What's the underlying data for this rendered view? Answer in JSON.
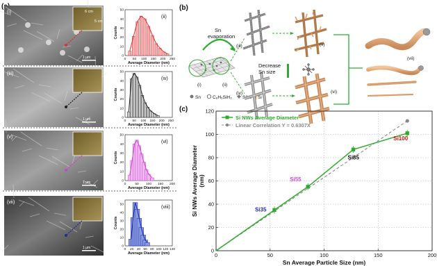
{
  "panels": {
    "a": {
      "label": "(a)",
      "rows": [
        {
          "sem_label": "(i)",
          "scale": "1 µm",
          "inset_w": "6 cm",
          "inset_h": "5 cm",
          "hist_label": "(ii)",
          "color": "#e03030",
          "fill": "#f3b0b0",
          "xticks": [
            "0",
            "50",
            "100",
            "150",
            "200",
            "250"
          ],
          "yticks": [
            "0",
            "10",
            "20",
            "30",
            "40",
            "50"
          ],
          "xlabel": "Average Diameter (nm)",
          "ylabel": "Counts",
          "xmax": 250,
          "ymax": 50,
          "bins": [
            {
              "x": 25,
              "y": 5
            },
            {
              "x": 45,
              "y": 21
            },
            {
              "x": 65,
              "y": 37
            },
            {
              "x": 85,
              "y": 43
            },
            {
              "x": 105,
              "y": 40
            },
            {
              "x": 125,
              "y": 32
            },
            {
              "x": 145,
              "y": 22
            },
            {
              "x": 165,
              "y": 13
            },
            {
              "x": 185,
              "y": 8
            },
            {
              "x": 205,
              "y": 4
            },
            {
              "x": 225,
              "y": 2
            }
          ]
        },
        {
          "sem_label": "(iii)",
          "scale": "1 µm",
          "inset_w": "",
          "inset_h": "",
          "hist_label": "(iv)",
          "color": "#222222",
          "fill": "#c8c8c8",
          "xticks": [
            "0",
            "50",
            "100",
            "150",
            "200",
            "250"
          ],
          "yticks": [
            "0",
            "10",
            "20",
            "30",
            "40",
            "50"
          ],
          "xlabel": "Average Diameter (nm)",
          "ylabel": "Counts",
          "xmax": 258,
          "ymax": 50,
          "bins": [
            {
              "x": 20,
              "y": 6
            },
            {
              "x": 35,
              "y": 42
            },
            {
              "x": 50,
              "y": 48
            },
            {
              "x": 65,
              "y": 44
            },
            {
              "x": 80,
              "y": 35
            },
            {
              "x": 95,
              "y": 24
            },
            {
              "x": 110,
              "y": 16
            },
            {
              "x": 125,
              "y": 11
            },
            {
              "x": 140,
              "y": 7
            },
            {
              "x": 160,
              "y": 4
            },
            {
              "x": 180,
              "y": 2
            }
          ]
        },
        {
          "sem_label": "(v)",
          "scale": "1 µm",
          "inset_w": "",
          "inset_h": "",
          "hist_label": "(vi)",
          "color": "#d040d0",
          "fill": "#f0b8f0",
          "xticks": [
            "0",
            "50",
            "100",
            "150",
            "200"
          ],
          "yticks": [
            "0",
            "10",
            "20",
            "30",
            "40",
            "50"
          ],
          "xlabel": "Average Diameter (nm)",
          "ylabel": "Counts",
          "xmax": 200,
          "ymax": 50,
          "bins": [
            {
              "x": 20,
              "y": 6
            },
            {
              "x": 30,
              "y": 22
            },
            {
              "x": 40,
              "y": 40
            },
            {
              "x": 50,
              "y": 44
            },
            {
              "x": 60,
              "y": 38
            },
            {
              "x": 70,
              "y": 29
            },
            {
              "x": 80,
              "y": 20
            },
            {
              "x": 90,
              "y": 12
            },
            {
              "x": 100,
              "y": 7
            },
            {
              "x": 115,
              "y": 3
            }
          ]
        },
        {
          "sem_label": "(vii)",
          "scale": "1 µm",
          "inset_w": "",
          "inset_h": "",
          "hist_label": "(viii)",
          "color": "#1c2ca8",
          "fill": "#8a9ae0",
          "xticks": [
            "0",
            "20",
            "40",
            "60",
            "80",
            "100",
            "120",
            "140"
          ],
          "yticks": [
            "0",
            "10",
            "20",
            "30",
            "40",
            "50"
          ],
          "xlabel": "Average Diameter (nm)",
          "ylabel": "Counts",
          "xmax": 140,
          "ymax": 55,
          "bins": [
            {
              "x": 18,
              "y": 8
            },
            {
              "x": 24,
              "y": 34
            },
            {
              "x": 30,
              "y": 52
            },
            {
              "x": 36,
              "y": 44
            },
            {
              "x": 42,
              "y": 33
            },
            {
              "x": 48,
              "y": 22
            },
            {
              "x": 54,
              "y": 13
            },
            {
              "x": 60,
              "y": 7
            },
            {
              "x": 66,
              "y": 4
            }
          ]
        }
      ]
    },
    "b": {
      "label": "(b)",
      "evaporation": "Sn\nevaporation",
      "decrease": "Decrease\nSn size",
      "sub_labels": [
        "(i)",
        "(ii)",
        "(iii)",
        "(iv)",
        "(v)",
        "(vi)",
        "(vii)"
      ],
      "legend": [
        "Sn",
        "C₆H₅SiH₃",
        "SiH₄",
        "Si"
      ]
    },
    "c": {
      "label": "(c)",
      "chart_data": {
        "type": "line",
        "xlabel": "Sn Average Particle Size (nm)",
        "ylabel": "Si NWs Average Diameter\n(nm)",
        "xlim": [
          0,
          200
        ],
        "ylim": [
          0,
          120
        ],
        "xticks": [
          0,
          50,
          100,
          150,
          200
        ],
        "yticks": [
          0,
          20,
          40,
          60,
          80,
          100,
          120
        ],
        "grid": true,
        "legend_position": "top-left",
        "series": [
          {
            "name": "Si NWs Average Diameter",
            "color": "#2eab2e",
            "x": [
              0,
              54,
              85,
              127,
              177
            ],
            "y": [
              0,
              35,
              55,
              87,
              101
            ]
          },
          {
            "name": "Linear Correlation Y = 0.6307X",
            "color": "#888888",
            "x": [
              0,
              177
            ],
            "y": [
              0,
              111.6
            ]
          }
        ],
        "annotations": [
          {
            "text": "Si35",
            "x": 54,
            "y": 35,
            "color": "#1a2ab8"
          },
          {
            "text": "Si55",
            "x": 85,
            "y": 55,
            "color": "#e040e0"
          },
          {
            "text": "Si85",
            "x": 127,
            "y": 87,
            "color": "#111111"
          },
          {
            "text": "Si100",
            "x": 177,
            "y": 101,
            "color": "#e01010"
          }
        ]
      }
    }
  }
}
